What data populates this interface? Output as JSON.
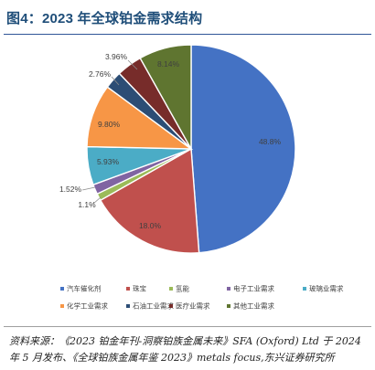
{
  "title": "图4：2023 年全球铂金需求结构",
  "chart_data": {
    "type": "pie",
    "start_angle_deg": 0,
    "direction": "clockwise",
    "slices": [
      {
        "label": "汽车催化剂",
        "value": 48.8,
        "value_label": "48.8%",
        "color": "#4472c4"
      },
      {
        "label": "珠宝",
        "value": 18.0,
        "value_label": "18.0%",
        "color": "#c0504d"
      },
      {
        "label": "氢能",
        "value": 1.1,
        "value_label": "1.1%",
        "color": "#9bbb59"
      },
      {
        "label": "电子工业需求",
        "value": 1.52,
        "value_label": "1.52%",
        "color": "#8064a2"
      },
      {
        "label": "玻璃业需求",
        "value": 5.93,
        "value_label": "5.93%",
        "color": "#4bacc6"
      },
      {
        "label": "化学工业需求",
        "value": 9.8,
        "value_label": "9.80%",
        "color": "#f79646"
      },
      {
        "label": "石油工业需求",
        "value": 2.76,
        "value_label": "2.76%",
        "color": "#2c4d75"
      },
      {
        "label": "医疗业需求",
        "value": 3.96,
        "value_label": "3.96%",
        "color": "#772c2a"
      },
      {
        "label": "其他工业需求",
        "value": 8.14,
        "value_label": "8.14%",
        "color": "#5f7530"
      }
    ],
    "legend_position": "bottom"
  },
  "source": "资料来源：《2023 铂金年刊-洞察铂族金属未来》SFA (Oxford) Ltd 于 2024 年 5 月发布、《全球铂族金属年鉴 2023》metals focus,东兴证券研究所"
}
